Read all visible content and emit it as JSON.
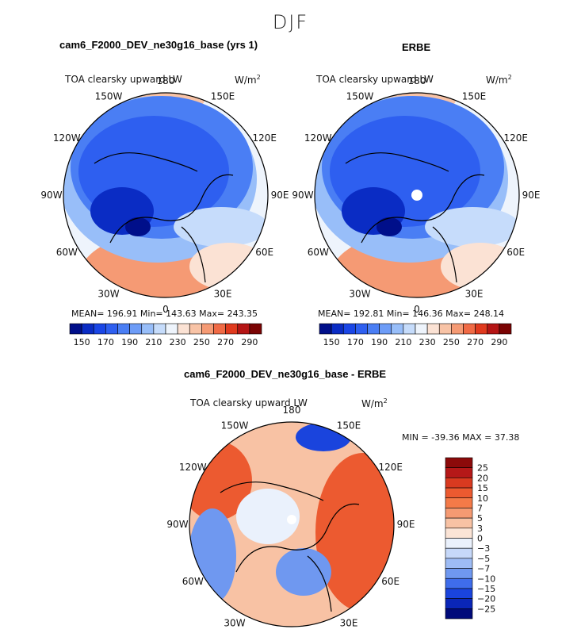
{
  "figure": {
    "title": "DJF"
  },
  "panels": [
    {
      "title": "cam6_F2000_DEV_ne30g16_base (yrs 1)",
      "field": "TOA clearsky upward LW",
      "units": "W/m",
      "units_exp": "2",
      "stats": "MEAN= 196.91   Min= 143.63   Max= 243.35"
    },
    {
      "title": "ERBE",
      "field": "TOA clearsky upward LW",
      "units": "W/m",
      "units_exp": "2",
      "stats": "MEAN= 192.81   Min= 146.36   Max= 248.14"
    },
    {
      "title": "cam6_F2000_DEV_ne30g16_base - ERBE",
      "field": "TOA clearsky upward LW",
      "units": "W/m",
      "units_exp": "2",
      "stats": "MIN = -39.36 MAX =  37.38"
    }
  ],
  "longitude_labels": [
    "180",
    "150E",
    "120E",
    "90E",
    "60E",
    "30E",
    "0",
    "30W",
    "60W",
    "90W",
    "120W",
    "150W"
  ],
  "chart_data": [
    {
      "type": "heatmap",
      "projection": "north polar stereographic",
      "title": "cam6_F2000_DEV_ne30g16_base (yrs 1)",
      "variable": "TOA clearsky upward LW",
      "units": "W/m2",
      "mean": 196.91,
      "min": 143.63,
      "max": 243.35,
      "colorbar_ticks": [
        "150",
        "170",
        "190",
        "210",
        "230",
        "250",
        "270",
        "290"
      ],
      "colorbar_levels": [
        150,
        160,
        170,
        180,
        190,
        200,
        210,
        220,
        230,
        240,
        250,
        260,
        270,
        280,
        290
      ],
      "colors": [
        "#000f8a",
        "#0a2cc4",
        "#1a46e6",
        "#2e5ff0",
        "#4a7ef4",
        "#6d9cf7",
        "#98bef9",
        "#c6dcfb",
        "#eef4fc",
        "#fbe2d4",
        "#f8c3a6",
        "#f59a74",
        "#f06a45",
        "#e03a1e",
        "#b51515",
        "#7a0303"
      ]
    },
    {
      "type": "heatmap",
      "projection": "north polar stereographic",
      "title": "ERBE",
      "variable": "TOA clearsky upward LW",
      "units": "W/m2",
      "mean": 192.81,
      "min": 146.36,
      "max": 248.14,
      "colorbar_ticks": [
        "150",
        "170",
        "190",
        "210",
        "230",
        "250",
        "270",
        "290"
      ],
      "colorbar_levels": [
        150,
        160,
        170,
        180,
        190,
        200,
        210,
        220,
        230,
        240,
        250,
        260,
        270,
        280,
        290
      ],
      "colors": [
        "#000f8a",
        "#0a2cc4",
        "#1a46e6",
        "#2e5ff0",
        "#4a7ef4",
        "#6d9cf7",
        "#98bef9",
        "#c6dcfb",
        "#eef4fc",
        "#fbe2d4",
        "#f8c3a6",
        "#f59a74",
        "#f06a45",
        "#e03a1e",
        "#b51515",
        "#7a0303"
      ]
    },
    {
      "type": "heatmap",
      "projection": "north polar stereographic",
      "title": "cam6_F2000_DEV_ne30g16_base - ERBE",
      "variable": "TOA clearsky upward LW",
      "units": "W/m2",
      "min": -39.36,
      "max": 37.38,
      "colorbar_ticks": [
        "25",
        "20",
        "15",
        "10",
        "7",
        "5",
        "3",
        "0",
        "−3",
        "−5",
        "−7",
        "−10",
        "−15",
        "−20",
        "−25"
      ],
      "colorbar_levels": [
        25,
        20,
        15,
        10,
        7,
        5,
        3,
        0,
        -3,
        -5,
        -7,
        -10,
        -15,
        -20,
        -25
      ],
      "colors": [
        "#8c0a0a",
        "#b51818",
        "#d93a20",
        "#ec5a30",
        "#f47a48",
        "#f59a72",
        "#f8c2a4",
        "#fbe4d6",
        "#eaf1fc",
        "#c6d8f9",
        "#9ebcf5",
        "#6f98f0",
        "#3f6deb",
        "#1a44dd",
        "#0a26b8",
        "#000a7a"
      ]
    }
  ]
}
